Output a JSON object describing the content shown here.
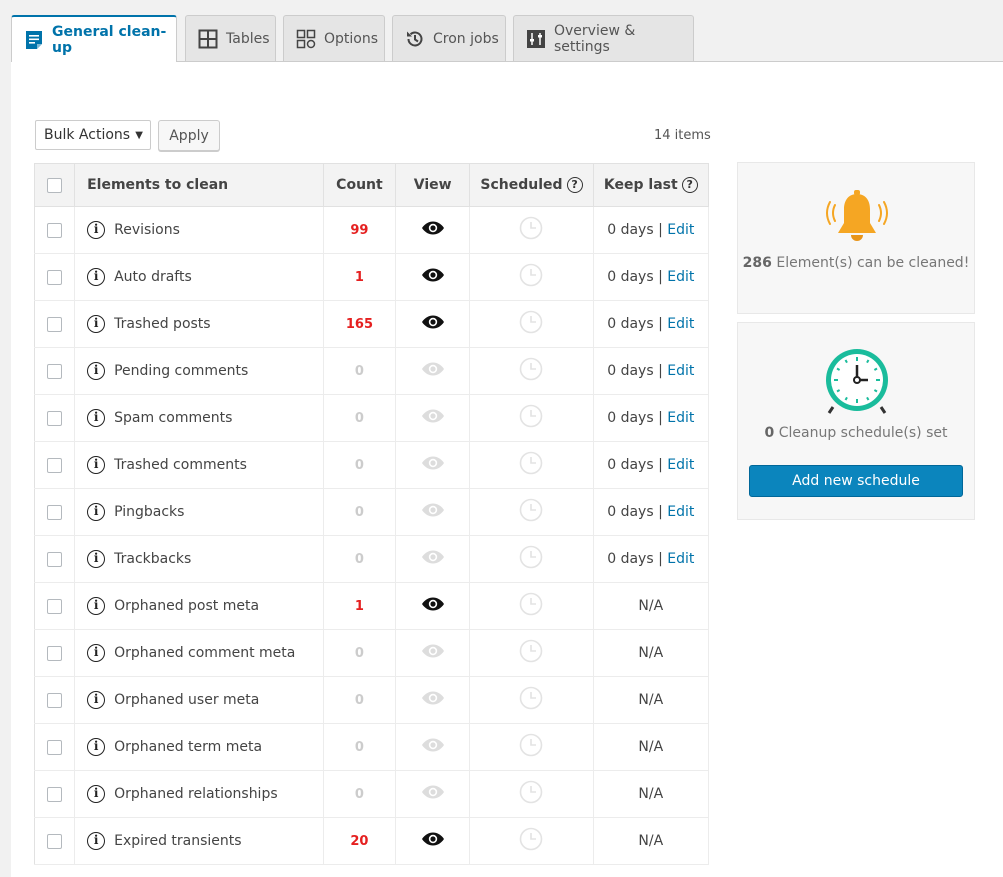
{
  "tabs": [
    {
      "label": "General clean-up",
      "icon": "document-list-icon",
      "active": true
    },
    {
      "label": "Tables",
      "icon": "table-grid-icon",
      "active": false
    },
    {
      "label": "Options",
      "icon": "options-grid-icon",
      "active": false
    },
    {
      "label": "Cron jobs",
      "icon": "history-clock-icon",
      "active": false
    },
    {
      "label": "Overview & settings",
      "icon": "settings-sliders-icon",
      "active": false
    }
  ],
  "toolbar": {
    "bulk_actions": "Bulk Actions",
    "apply_label": "Apply",
    "items_count": "14 items"
  },
  "table": {
    "headers": {
      "elements": "Elements to clean",
      "count": "Count",
      "view": "View",
      "scheduled": "Scheduled",
      "keep_last": "Keep last"
    },
    "help_glyph": "?",
    "info_glyph": "i",
    "edit_label": "Edit",
    "rows": [
      {
        "name": "Revisions",
        "count": "99",
        "viewable": true,
        "keep_days": "0 days",
        "editable": true
      },
      {
        "name": "Auto drafts",
        "count": "1",
        "viewable": true,
        "keep_days": "0 days",
        "editable": true
      },
      {
        "name": "Trashed posts",
        "count": "165",
        "viewable": true,
        "keep_days": "0 days",
        "editable": true
      },
      {
        "name": "Pending comments",
        "count": "0",
        "viewable": false,
        "keep_days": "0 days",
        "editable": true
      },
      {
        "name": "Spam comments",
        "count": "0",
        "viewable": false,
        "keep_days": "0 days",
        "editable": true
      },
      {
        "name": "Trashed comments",
        "count": "0",
        "viewable": false,
        "keep_days": "0 days",
        "editable": true
      },
      {
        "name": "Pingbacks",
        "count": "0",
        "viewable": false,
        "keep_days": "0 days",
        "editable": true
      },
      {
        "name": "Trackbacks",
        "count": "0",
        "viewable": false,
        "keep_days": "0 days",
        "editable": true
      },
      {
        "name": "Orphaned post meta",
        "count": "1",
        "viewable": true,
        "keep_days": "N/A",
        "editable": false
      },
      {
        "name": "Orphaned comment meta",
        "count": "0",
        "viewable": false,
        "keep_days": "N/A",
        "editable": false
      },
      {
        "name": "Orphaned user meta",
        "count": "0",
        "viewable": false,
        "keep_days": "N/A",
        "editable": false
      },
      {
        "name": "Orphaned term meta",
        "count": "0",
        "viewable": false,
        "keep_days": "N/A",
        "editable": false
      },
      {
        "name": "Orphaned relationships",
        "count": "0",
        "viewable": false,
        "keep_days": "N/A",
        "editable": false
      },
      {
        "name": "Expired transients",
        "count": "20",
        "viewable": true,
        "keep_days": "N/A",
        "editable": false
      }
    ]
  },
  "sidebar": {
    "cleanable_count": "286",
    "cleanable_text": "Element(s) can be cleaned!",
    "schedule_count": "0",
    "schedule_text": "Cleanup schedule(s) set",
    "add_schedule_label": "Add new schedule"
  },
  "colors": {
    "accent": "#0073aa",
    "count_red": "#e52020",
    "bell": "#f5a623",
    "clock": "#1abc9c",
    "button": "#0b85bd"
  }
}
